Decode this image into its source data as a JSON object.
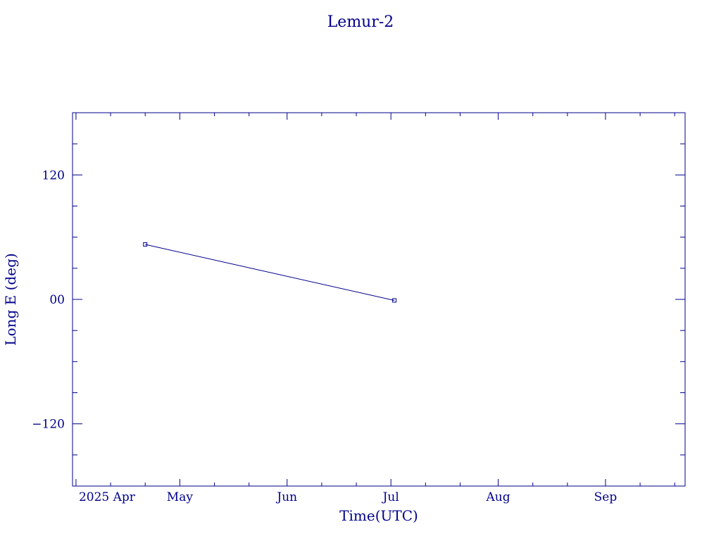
{
  "chart_data": {
    "type": "line",
    "title": "Lemur-2",
    "xlabel": "Time(UTC)",
    "ylabel": "Long E (deg)",
    "x_ticks": [
      {
        "date": "2025-04-01",
        "label": "2025 Apr"
      },
      {
        "date": "2025-05-01",
        "label": "May"
      },
      {
        "date": "2025-06-01",
        "label": "Jun"
      },
      {
        "date": "2025-07-01",
        "label": "Jul"
      },
      {
        "date": "2025-08-01",
        "label": "Aug"
      },
      {
        "date": "2025-09-01",
        "label": "Sep"
      }
    ],
    "y_ticks": [
      {
        "value": 120,
        "label": "120"
      },
      {
        "value": 0,
        "label": "00"
      },
      {
        "value": -120,
        "label": "−120"
      }
    ],
    "xlim": [
      "2025-03-31",
      "2025-09-24"
    ],
    "ylim": [
      -180,
      180
    ],
    "grid": false,
    "color": "#00008b",
    "series": [
      {
        "points": [
          {
            "x": "2025-04-21",
            "y": 53
          },
          {
            "x": "2025-07-02",
            "y": -1
          }
        ]
      }
    ]
  }
}
